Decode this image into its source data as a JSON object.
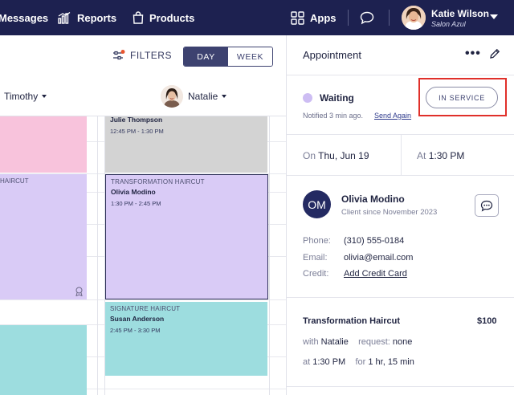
{
  "nav": {
    "messages": "Messages",
    "reports": "Reports",
    "products": "Products",
    "apps": "Apps",
    "user_name": "Katie Wilson",
    "user_salon": "Salon Azul"
  },
  "toolbar": {
    "filters": "FILTERS",
    "day": "DAY",
    "week": "WEEK"
  },
  "staff": [
    "Timothy",
    "Natalie"
  ],
  "calendar": {
    "left_col_service": "HAIRCUT",
    "appointments": [
      {
        "service": "",
        "client": "Julie Thompson",
        "time": "12:45 PM - 1:30 PM"
      },
      {
        "service": "TRANSFORMATION HAIRCUT",
        "client": "Olivia Modino",
        "time": "1:30 PM - 2:45 PM"
      },
      {
        "service": "SIGNATURE HAIRCUT",
        "client": "Susan Anderson",
        "time": "2:45 PM - 3:30 PM"
      }
    ]
  },
  "panel": {
    "title": "Appointment",
    "status": "Waiting",
    "notified": "Notified 3 min ago.",
    "send_again": "Send Again",
    "in_service": "IN SERVICE",
    "on_label": "On",
    "on_value": "Thu, Jun 19",
    "at_label": "At",
    "at_value": "1:30 PM",
    "client": {
      "initials": "OM",
      "name": "Olivia Modino",
      "since": "Client since November 2023",
      "phone_label": "Phone:",
      "phone": "(310) 555-0184",
      "email_label": "Email:",
      "email": "olivia@email.com",
      "credit_label": "Credit:",
      "credit": "Add Credit Card"
    },
    "service": {
      "name": "Transformation Haircut",
      "price": "$100",
      "with_label": "with",
      "with_value": "Natalie",
      "request_label": "request:",
      "request_value": "none",
      "at_label": "at",
      "at_value": "1:30 PM",
      "for_label": "for",
      "for_value": "1 hr, 15 min"
    }
  },
  "colors": {
    "nav_bg": "#1d2150",
    "pink": "#f8c3dc",
    "gray": "#d3d3d3",
    "lavender": "#d9cbf6",
    "teal": "#9ddddf",
    "highlight": "#e0302a"
  }
}
